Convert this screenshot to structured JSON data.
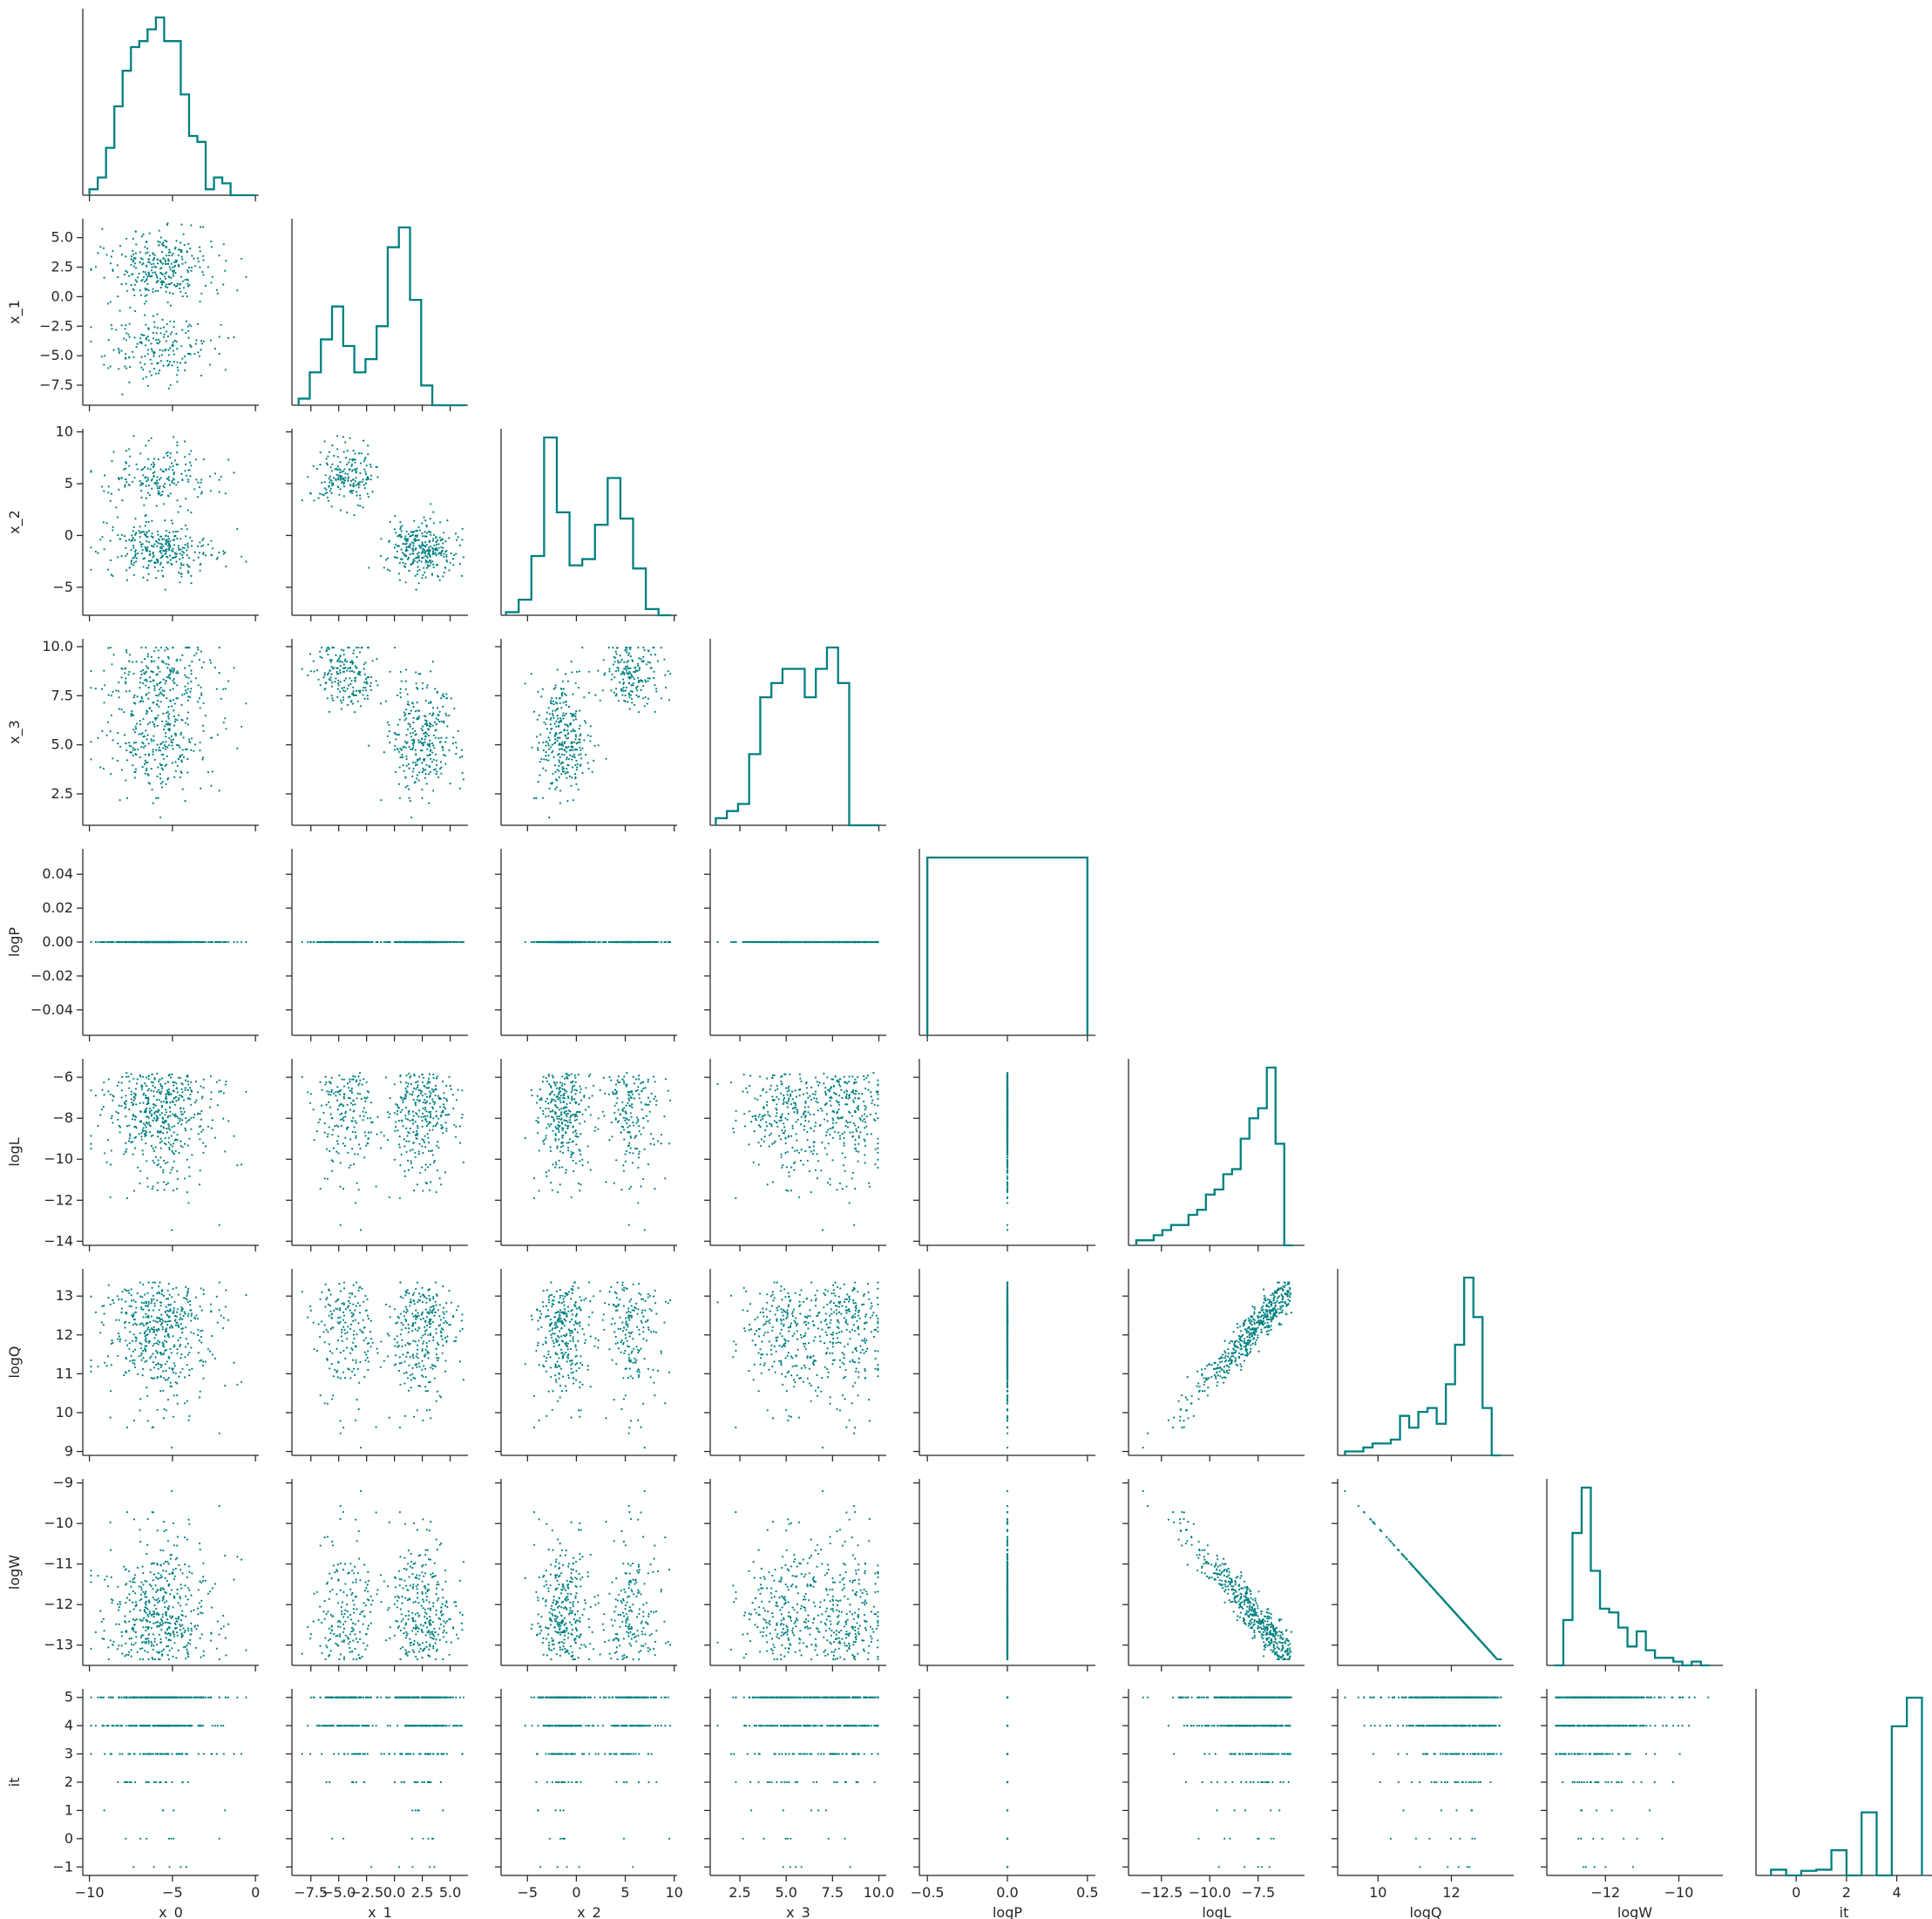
{
  "chart_data": {
    "type": "scatter",
    "title": "",
    "grid": false,
    "color": "#008080",
    "variables": [
      {
        "name": "x_0",
        "label": "x_0",
        "range": [
          -10.4,
          0.2
        ],
        "ticks": [
          -10,
          -5,
          0
        ],
        "tick_labels": [
          "−10",
          "−5",
          "0"
        ],
        "hist": {
          "edges": [
            -10.0,
            -9.5,
            -9.0,
            -8.5,
            -8.0,
            -7.5,
            -7.0,
            -6.5,
            -6.0,
            -5.5,
            -5.0,
            -4.5,
            -4.0,
            -3.5,
            -3.0,
            -2.5,
            -2.0,
            -1.5,
            -1.0,
            -0.5,
            0.0
          ],
          "counts": [
            1,
            3,
            8,
            15,
            21,
            25,
            26,
            28,
            30,
            26,
            26,
            17,
            10,
            9,
            1,
            3,
            2,
            0,
            0,
            0
          ]
        }
      },
      {
        "name": "x_1",
        "label": "x_1",
        "range": [
          -9.2,
          6.6
        ],
        "ticks": [
          -7.5,
          -5.0,
          -2.5,
          0.0,
          2.5,
          5.0
        ],
        "tick_labels": [
          "−7.5",
          "−5.0",
          "−2.5",
          "0.0",
          "2.5",
          "5.0"
        ],
        "hist": {
          "edges": [
            -8.6,
            -7.6,
            -6.6,
            -5.6,
            -4.6,
            -3.6,
            -2.6,
            -1.6,
            -0.6,
            0.4,
            1.4,
            2.4,
            3.4,
            4.4,
            5.4,
            6.4
          ],
          "counts": [
            1,
            5,
            10,
            15,
            9,
            5,
            7,
            12,
            24,
            27,
            16,
            3,
            0,
            0,
            0
          ]
        }
      },
      {
        "name": "x_2",
        "label": "x_2",
        "range": [
          -7.7,
          10.3
        ],
        "ticks": [
          -5,
          0,
          5,
          10
        ],
        "tick_labels": [
          "−5",
          "0",
          "5",
          "10"
        ],
        "hist": {
          "edges": [
            -7.2,
            -5.9,
            -4.6,
            -3.3,
            -2.0,
            -0.7,
            0.6,
            1.9,
            3.2,
            4.5,
            5.8,
            7.1,
            8.4,
            9.7
          ],
          "counts": [
            1,
            5,
            19,
            57,
            33,
            16,
            18,
            29,
            44,
            31,
            15,
            2,
            0
          ]
        }
      },
      {
        "name": "x_3",
        "label": "x_3",
        "range": [
          0.9,
          10.4
        ],
        "ticks": [
          2.5,
          5.0,
          7.5,
          10.0
        ],
        "tick_labels": [
          "2.5",
          "5.0",
          "7.5",
          "10.0"
        ],
        "hist": {
          "edges": [
            1.2,
            1.8,
            2.4,
            3.0,
            3.6,
            4.2,
            4.8,
            5.4,
            6.0,
            6.6,
            7.2,
            7.8,
            8.4,
            9.0,
            9.6,
            10.0
          ],
          "counts": [
            1,
            2,
            3,
            10,
            18,
            20,
            22,
            22,
            18,
            22,
            25,
            20,
            0,
            0,
            0
          ]
        }
      },
      {
        "name": "logP",
        "label": "logP",
        "range": [
          -0.55,
          0.55
        ],
        "ticks": [
          -0.5,
          0.0,
          0.5
        ],
        "tick_labels": [
          "−0.5",
          "0.0",
          "0.5"
        ],
        "y_range": [
          -0.055,
          0.055
        ],
        "y_ticks": [
          -0.04,
          -0.02,
          0.0,
          0.02,
          0.04
        ],
        "y_tick_labels": [
          "−0.04",
          "−0.02",
          "0.00",
          "0.02",
          "0.04"
        ],
        "hist": {
          "edges": [
            -0.5,
            0.5
          ],
          "counts": [
            500
          ]
        }
      },
      {
        "name": "logL",
        "label": "logL",
        "range": [
          -14.2,
          -5.1
        ],
        "ticks": [
          -12.5,
          -10.0,
          -7.5
        ],
        "tick_labels": [
          "−12.5",
          "−10.0",
          "−7.5"
        ],
        "y_range": [
          -14.2,
          -5.1
        ],
        "y_ticks": [
          -14,
          -12,
          -10,
          -8,
          -6
        ],
        "y_tick_labels": [
          "−14",
          "−12",
          "−10",
          "−8",
          "−6"
        ],
        "hist": {
          "edges": [
            -13.8,
            -13.35,
            -12.9,
            -12.45,
            -12.0,
            -11.55,
            -11.1,
            -10.65,
            -10.2,
            -9.75,
            -9.3,
            -8.85,
            -8.4,
            -7.95,
            -7.5,
            -7.05,
            -6.6,
            -6.15,
            -5.7
          ],
          "counts": [
            1,
            1,
            2,
            3,
            4,
            4,
            6,
            7,
            10,
            11,
            14,
            15,
            21,
            25,
            27,
            35,
            20,
            0
          ]
        }
      },
      {
        "name": "logQ",
        "label": "logQ",
        "range": [
          8.9,
          13.7
        ],
        "ticks": [
          10,
          12
        ],
        "tick_labels": [
          "10",
          "12"
        ],
        "y_range": [
          8.9,
          13.7
        ],
        "y_ticks": [
          9,
          10,
          11,
          12,
          13
        ],
        "y_tick_labels": [
          "9",
          "10",
          "11",
          "12",
          "13"
        ],
        "hist": {
          "edges": [
            9.1,
            9.35,
            9.6,
            9.85,
            10.1,
            10.35,
            10.6,
            10.85,
            11.1,
            11.35,
            11.6,
            11.85,
            12.1,
            12.35,
            12.6,
            12.85,
            13.1,
            13.35
          ],
          "counts": [
            1,
            1,
            2,
            3,
            3,
            4,
            10,
            7,
            11,
            12,
            8,
            18,
            28,
            45,
            35,
            12,
            0
          ]
        }
      },
      {
        "name": "logW",
        "label": "logW",
        "range": [
          -13.6,
          -8.8
        ],
        "ticks": [
          -12,
          -10
        ],
        "tick_labels": [
          "−12",
          "−10"
        ],
        "y_range": [
          -13.5,
          -8.9
        ],
        "y_ticks": [
          -13,
          -12,
          -11,
          -10,
          -9
        ],
        "y_tick_labels": [
          "−13",
          "−12",
          "−11",
          "−10",
          "−9"
        ],
        "hist": {
          "edges": [
            -13.4,
            -13.15,
            -12.9,
            -12.65,
            -12.4,
            -12.15,
            -11.9,
            -11.65,
            -11.4,
            -11.15,
            -10.9,
            -10.65,
            -10.4,
            -10.15,
            -9.9,
            -9.65,
            -9.4,
            -9.15
          ],
          "counts": [
            0,
            12,
            35,
            47,
            25,
            15,
            14,
            10,
            5,
            9,
            4,
            2,
            2,
            1,
            0,
            1,
            0
          ]
        }
      },
      {
        "name": "it",
        "label": "it",
        "range": [
          -1.6,
          5.4
        ],
        "ticks": [
          0,
          2,
          4
        ],
        "tick_labels": [
          "0",
          "2",
          "4"
        ],
        "y_range": [
          -1.3,
          5.3
        ],
        "y_ticks": [
          -1,
          0,
          1,
          2,
          3,
          4,
          5
        ],
        "y_tick_labels": [
          "−1",
          "0",
          "1",
          "2",
          "3",
          "4",
          "5"
        ],
        "hist": {
          "edges": [
            -1.0,
            -0.4,
            0.2,
            0.8,
            1.4,
            2.0,
            2.6,
            3.2,
            3.8,
            4.4,
            5.0
          ],
          "counts": [
            5,
            0,
            4,
            5,
            22,
            0,
            55,
            0,
            130,
            155
          ]
        }
      }
    ],
    "sample_size": 500,
    "layout": "corner"
  }
}
